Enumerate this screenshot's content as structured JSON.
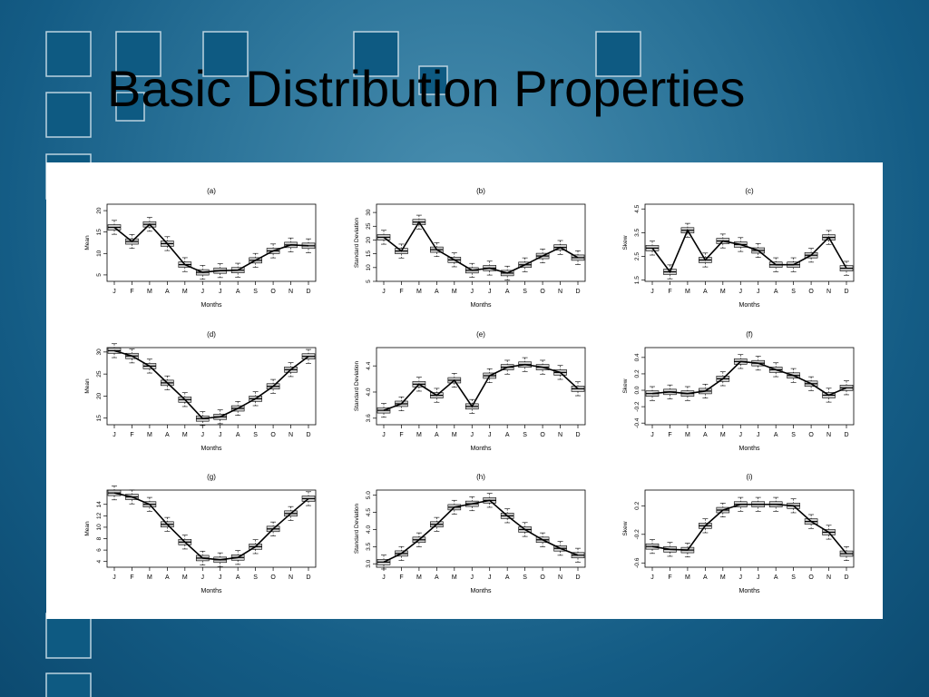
{
  "slide": {
    "title": "Basic Distribution Properties",
    "background_color": "#145c85",
    "decor_square_color": "#0e5a82"
  },
  "chart_data": [
    {
      "type": "line",
      "panel": "(a)",
      "xlabel": "Months",
      "ylabel": "Mean",
      "categories": [
        "J",
        "F",
        "M",
        "A",
        "M",
        "J",
        "J",
        "A",
        "S",
        "O",
        "N",
        "D"
      ],
      "ylim": [
        3.5,
        21.5
      ],
      "yticks": [
        5,
        10,
        15,
        20
      ],
      "series": [
        {
          "values": [
            16.1,
            12.8,
            16.8,
            12.3,
            7.4,
            5.6,
            6.0,
            6.1,
            8.4,
            10.6,
            12.0,
            11.8
          ]
        }
      ]
    },
    {
      "type": "line",
      "panel": "(b)",
      "xlabel": "Months",
      "ylabel": "Standard Deviation",
      "categories": [
        "J",
        "F",
        "M",
        "A",
        "M",
        "J",
        "J",
        "A",
        "S",
        "O",
        "N",
        "D"
      ],
      "ylim": [
        5,
        33
      ],
      "yticks": [
        5,
        10,
        15,
        20,
        25,
        30
      ],
      "series": [
        {
          "values": [
            21,
            16,
            26.5,
            16.5,
            12.8,
            9,
            9.8,
            8,
            11,
            14.2,
            17.3,
            13.6
          ]
        }
      ]
    },
    {
      "type": "line",
      "panel": "(c)",
      "xlabel": "Months",
      "ylabel": "Skew",
      "categories": [
        "J",
        "F",
        "M",
        "A",
        "M",
        "J",
        "J",
        "A",
        "S",
        "O",
        "N",
        "D"
      ],
      "ylim": [
        1.45,
        4.7
      ],
      "yticks": [
        1.5,
        2.5,
        3.5,
        4.5
      ],
      "yticklabels": [
        "1.5",
        "2.5",
        "3.5",
        "4.5"
      ],
      "series": [
        {
          "values": [
            2.85,
            1.85,
            3.6,
            2.35,
            3.15,
            3.0,
            2.75,
            2.15,
            2.15,
            2.55,
            3.3,
            2.0
          ]
        }
      ]
    },
    {
      "type": "line",
      "panel": "(d)",
      "xlabel": "Months",
      "ylabel": "Mean",
      "categories": [
        "J",
        "F",
        "M",
        "A",
        "M",
        "J",
        "J",
        "A",
        "S",
        "O",
        "N",
        "D"
      ],
      "ylim": [
        13.5,
        31
      ],
      "yticks": [
        15,
        20,
        25,
        30
      ],
      "series": [
        {
          "values": [
            30.3,
            29.1,
            26.8,
            23.0,
            19.2,
            14.9,
            15.3,
            17.2,
            19.4,
            22.2,
            26.0,
            29.0
          ]
        }
      ]
    },
    {
      "type": "line",
      "panel": "(e)",
      "xlabel": "Months",
      "ylabel": "Standard Deviation",
      "categories": [
        "J",
        "F",
        "M",
        "A",
        "M",
        "J",
        "J",
        "A",
        "S",
        "O",
        "N",
        "D"
      ],
      "ylim": [
        3.5,
        4.68
      ],
      "yticks": [
        3.6,
        4.0,
        4.4
      ],
      "yticklabels": [
        "3.6",
        "4.0",
        "4.4"
      ],
      "series": [
        {
          "values": [
            3.72,
            3.82,
            4.12,
            3.95,
            4.18,
            3.78,
            4.25,
            4.38,
            4.42,
            4.38,
            4.3,
            4.05
          ]
        }
      ]
    },
    {
      "type": "line",
      "panel": "(f)",
      "xlabel": "Months",
      "ylabel": "Skew",
      "categories": [
        "J",
        "F",
        "M",
        "A",
        "M",
        "J",
        "J",
        "A",
        "S",
        "O",
        "N",
        "D"
      ],
      "ylim": [
        -0.42,
        0.52
      ],
      "yticks": [
        -0.4,
        -0.2,
        0.0,
        0.2,
        0.4
      ],
      "yticklabels": [
        "-0.4",
        "-0.2",
        "0.0",
        "0.2",
        "0.4"
      ],
      "series": [
        {
          "values": [
            -0.04,
            -0.02,
            -0.04,
            -0.01,
            0.14,
            0.35,
            0.33,
            0.25,
            0.18,
            0.08,
            -0.06,
            0.03
          ]
        }
      ]
    },
    {
      "type": "line",
      "panel": "(g)",
      "xlabel": "Months",
      "ylabel": "Mean",
      "categories": [
        "J",
        "F",
        "M",
        "A",
        "M",
        "J",
        "J",
        "A",
        "S",
        "O",
        "N",
        "D"
      ],
      "ylim": [
        3,
        16.5
      ],
      "yticks": [
        4,
        6,
        8,
        10,
        12,
        14
      ],
      "series": [
        {
          "values": [
            16.0,
            15.3,
            14.0,
            10.5,
            7.4,
            4.6,
            4.3,
            4.7,
            6.6,
            9.7,
            12.4,
            15.0
          ]
        }
      ]
    },
    {
      "type": "line",
      "panel": "(h)",
      "xlabel": "Months",
      "ylabel": "Standard Deviation",
      "categories": [
        "J",
        "F",
        "M",
        "A",
        "M",
        "J",
        "J",
        "A",
        "S",
        "O",
        "N",
        "D"
      ],
      "ylim": [
        2.9,
        5.15
      ],
      "yticks": [
        3.0,
        3.5,
        4.0,
        4.5,
        5.0
      ],
      "yticklabels": [
        "3.0",
        "3.5",
        "4.0",
        "4.5",
        "5.0"
      ],
      "series": [
        {
          "values": [
            3.05,
            3.3,
            3.7,
            4.15,
            4.65,
            4.75,
            4.85,
            4.4,
            4.0,
            3.7,
            3.45,
            3.25
          ]
        }
      ]
    },
    {
      "type": "line",
      "panel": "(i)",
      "xlabel": "Months",
      "ylabel": "Skew",
      "categories": [
        "J",
        "F",
        "M",
        "A",
        "M",
        "J",
        "J",
        "A",
        "S",
        "O",
        "N",
        "D"
      ],
      "ylim": [
        -0.66,
        0.42
      ],
      "yticks": [
        -0.6,
        -0.2,
        0.2
      ],
      "yticklabels": [
        "-0.6",
        "-0.2",
        "0.2"
      ],
      "series": [
        {
          "values": [
            -0.37,
            -0.41,
            -0.42,
            -0.08,
            0.14,
            0.22,
            0.22,
            0.22,
            0.2,
            -0.02,
            -0.17,
            -0.47
          ]
        }
      ]
    }
  ]
}
